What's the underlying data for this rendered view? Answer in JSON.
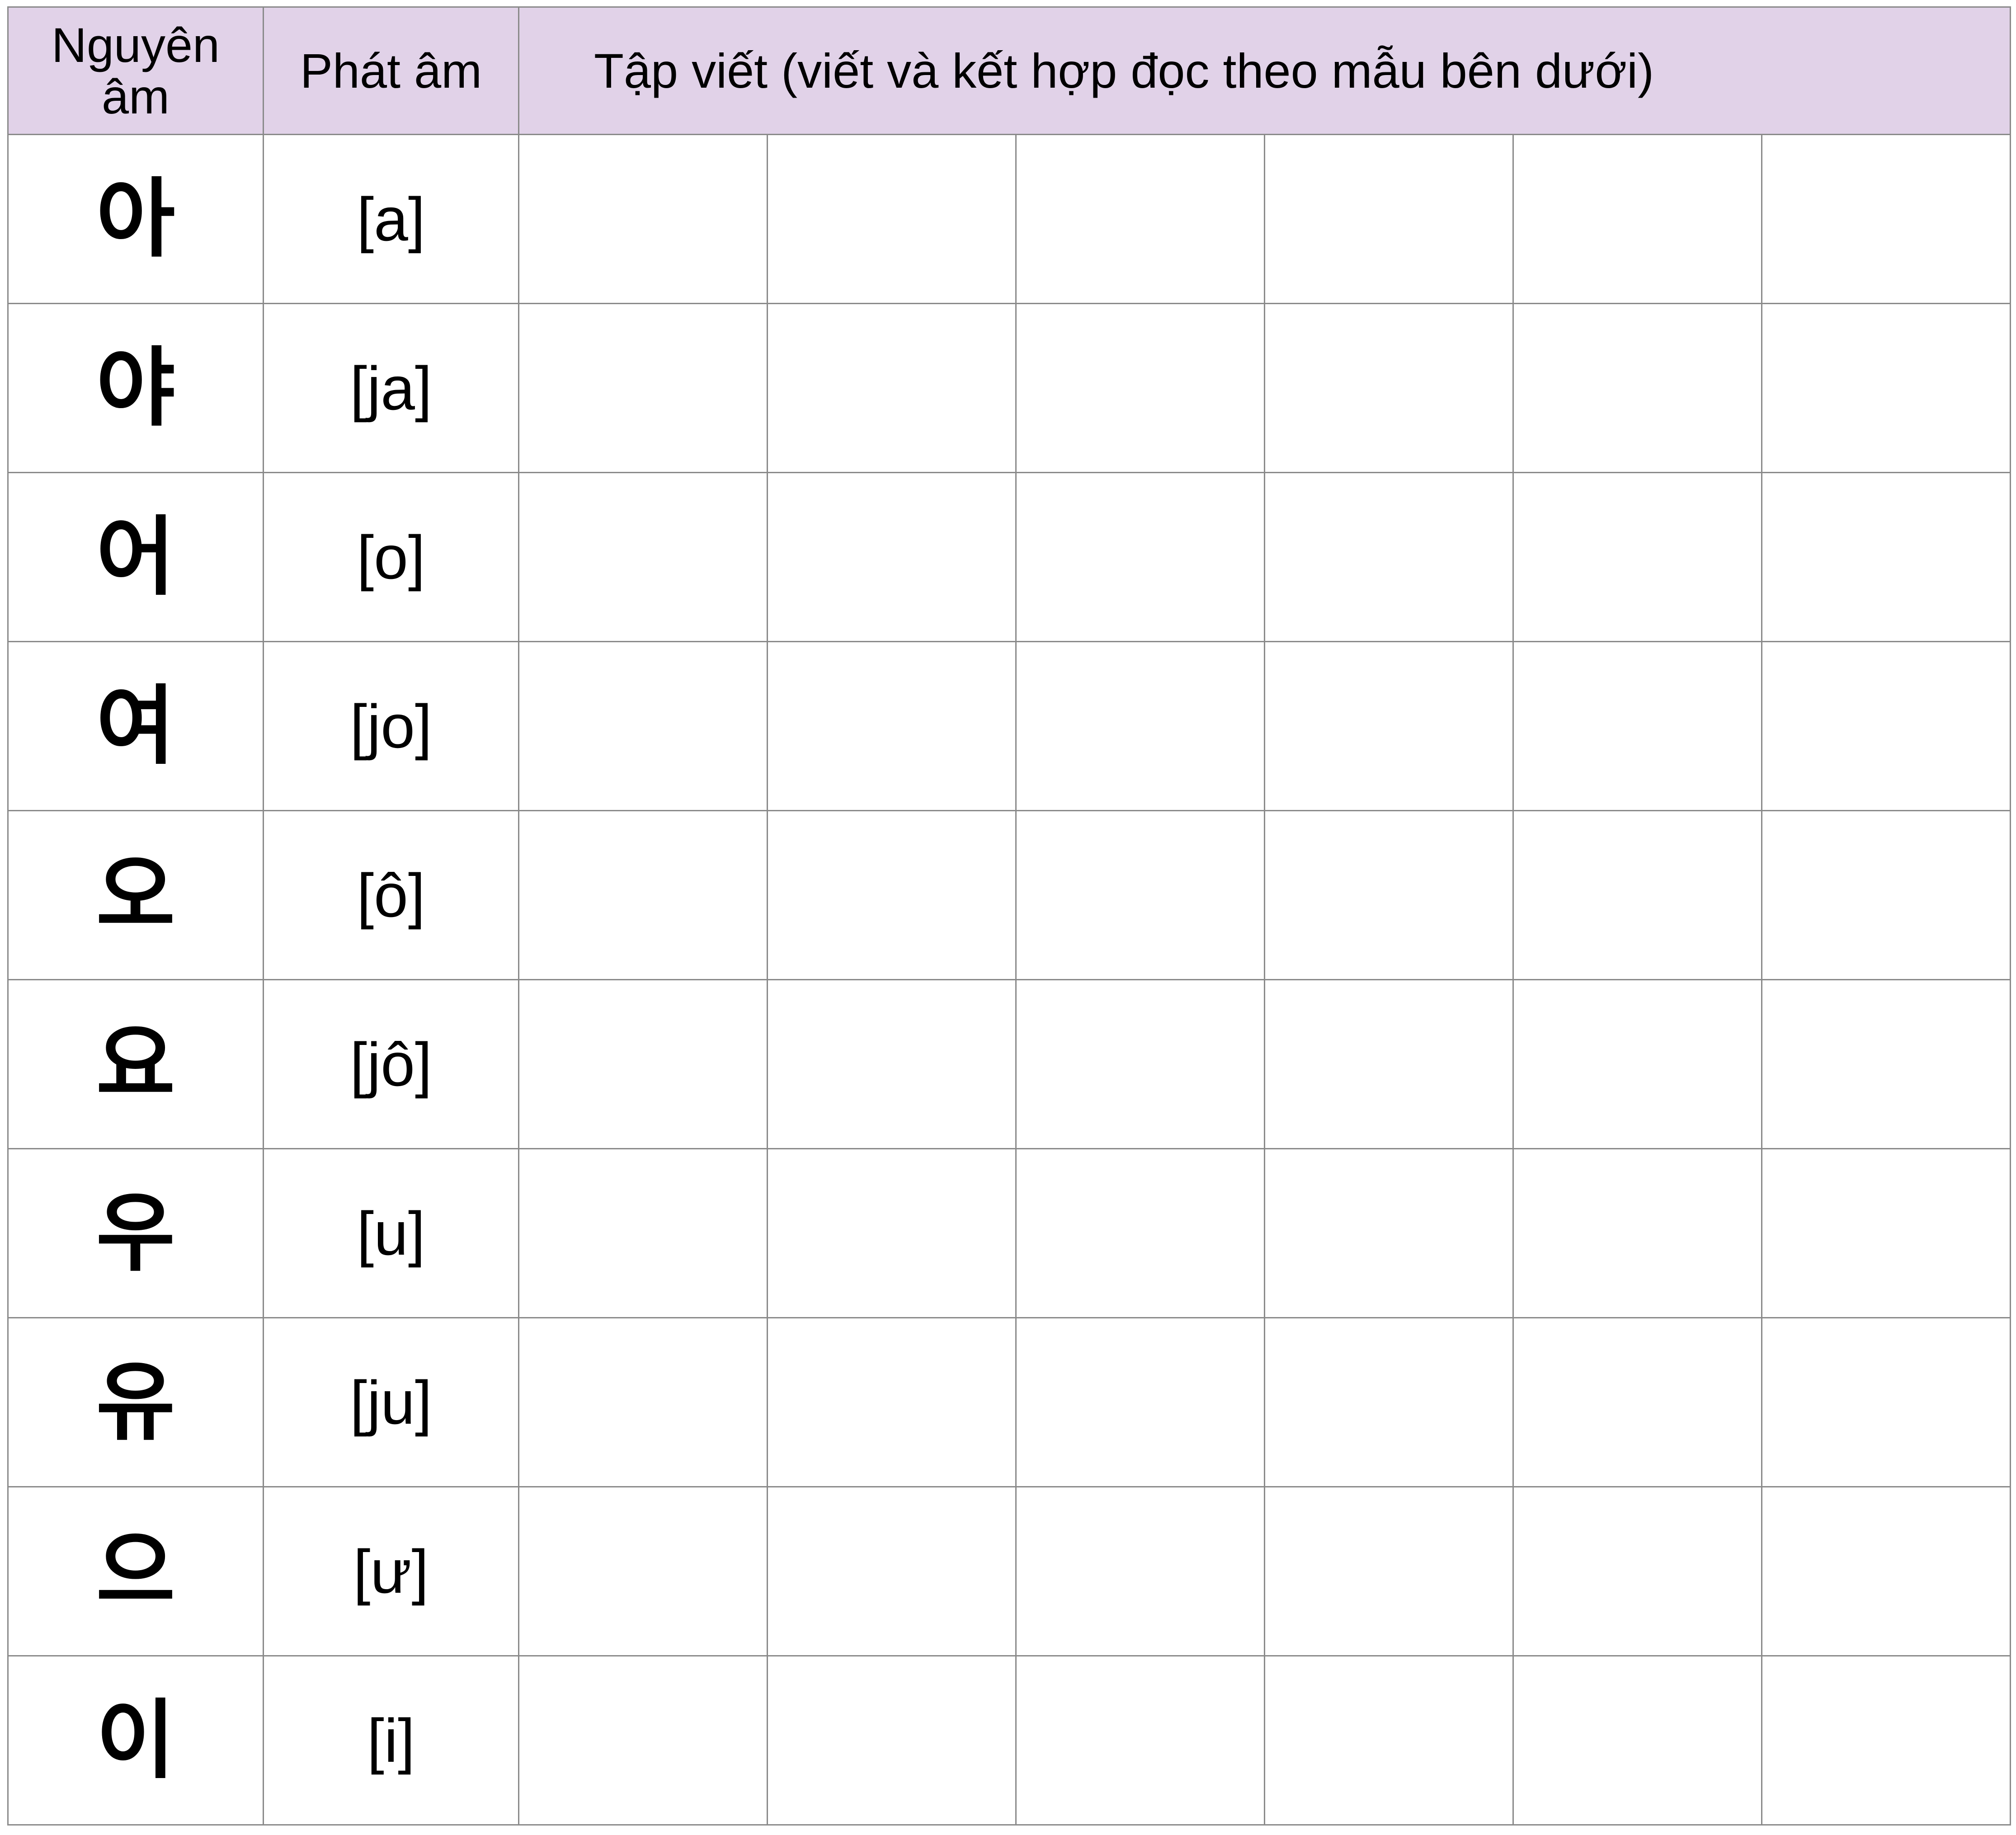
{
  "header": {
    "vowel_col": [
      "Nguyên",
      "âm"
    ],
    "pronunciation_col": "Phát âm",
    "practice_col": "Tập viết (viết và kết hợp đọc theo mẫu bên dưới)"
  },
  "rows": [
    {
      "vowel": "아",
      "pron": "[a]"
    },
    {
      "vowel": "야",
      "pron": "[ja]"
    },
    {
      "vowel": "어",
      "pron": "[o]"
    },
    {
      "vowel": "여",
      "pron": "[jo]"
    },
    {
      "vowel": "오",
      "pron": "[ô]"
    },
    {
      "vowel": "요",
      "pron": "[jô]"
    },
    {
      "vowel": "우",
      "pron": "[u]"
    },
    {
      "vowel": "유",
      "pron": "[ju]"
    },
    {
      "vowel": "으",
      "pron": "[ư]"
    },
    {
      "vowel": "이",
      "pron": "[i]"
    }
  ],
  "colors": {
    "header_bg": "#e1d2e8",
    "grid_line": "#8a8a8a"
  }
}
